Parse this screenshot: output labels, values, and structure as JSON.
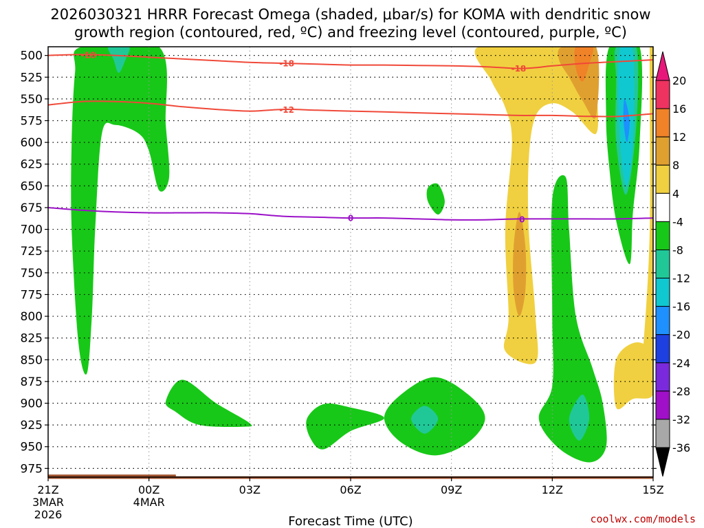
{
  "chart_data": {
    "type": "time-height contour",
    "title_line1": "2026030321 HRRR Forecast Omega (shaded, μbar/s) for KOMA with dendritic snow",
    "title_line2": "growth region (contoured, red, ºC) and freezing level (contoured, purple, ºC)",
    "xlabel": "Forecast Time (UTC)",
    "ylabel": "",
    "credit": "coolwx.com/models",
    "xlim": [
      0,
      18
    ],
    "ylim": [
      985,
      490
    ],
    "y_ticks": [
      500,
      525,
      550,
      575,
      600,
      625,
      650,
      675,
      700,
      725,
      750,
      775,
      800,
      825,
      850,
      875,
      900,
      925,
      950,
      975
    ],
    "x_ticks": [
      {
        "hour": 0,
        "label": "21Z",
        "date1": "3MAR",
        "date2": "2026"
      },
      {
        "hour": 3,
        "label": "00Z",
        "date1": "4MAR",
        "date2": ""
      },
      {
        "hour": 6,
        "label": "03Z",
        "date1": "",
        "date2": ""
      },
      {
        "hour": 9,
        "label": "06Z",
        "date1": "",
        "date2": ""
      },
      {
        "hour": 12,
        "label": "09Z",
        "date1": "",
        "date2": ""
      },
      {
        "hour": 15,
        "label": "12Z",
        "date1": "",
        "date2": ""
      },
      {
        "hour": 18,
        "label": "15Z",
        "date1": "",
        "date2": ""
      }
    ],
    "colorbar": {
      "levels": [
        20,
        16,
        12,
        8,
        4,
        -4,
        -8,
        -12,
        -16,
        -20,
        -24,
        -28,
        -32,
        -36
      ],
      "colors": [
        "#ee3360",
        "#f08228",
        "#e0a030",
        "#f0d040",
        "#ffffff",
        "#18c818",
        "#20c898",
        "#10c8d0",
        "#1e90ff",
        "#1e40e0",
        "#7a2adc",
        "#a010c8",
        "#a8a8a8"
      ],
      "top_triangle": "#e8187a",
      "bottom_triangle": "#000000"
    },
    "series": [
      {
        "name": "-18C isotherm",
        "color": "#f04838",
        "label": "-18",
        "label_points": [
          [
            1.2,
            499.5
          ],
          [
            7.1,
            509
          ],
          [
            14.0,
            515
          ]
        ],
        "points": [
          [
            0,
            500
          ],
          [
            1,
            499
          ],
          [
            2,
            500
          ],
          [
            3,
            502
          ],
          [
            4,
            504
          ],
          [
            5,
            506
          ],
          [
            6,
            508
          ],
          [
            7,
            509
          ],
          [
            8,
            510
          ],
          [
            9,
            511
          ],
          [
            10,
            511
          ],
          [
            11,
            511.5
          ],
          [
            12,
            512
          ],
          [
            13,
            513
          ],
          [
            14,
            515
          ],
          [
            14.5,
            514
          ],
          [
            15,
            512
          ],
          [
            16,
            509
          ],
          [
            17,
            507
          ],
          [
            18,
            505
          ]
        ]
      },
      {
        "name": "-12C isotherm",
        "color": "#f04838",
        "label": "-12",
        "label_points": [
          [
            7.1,
            562.5
          ]
        ],
        "points": [
          [
            0,
            557
          ],
          [
            1,
            553
          ],
          [
            2,
            553
          ],
          [
            3,
            555
          ],
          [
            4,
            559
          ],
          [
            5,
            562
          ],
          [
            6,
            564
          ],
          [
            7,
            562
          ],
          [
            8,
            563
          ],
          [
            9,
            564
          ],
          [
            10,
            565
          ],
          [
            11,
            566
          ],
          [
            12,
            567
          ],
          [
            13,
            568
          ],
          [
            14,
            569
          ],
          [
            15,
            569
          ],
          [
            16,
            570
          ],
          [
            17,
            570
          ],
          [
            18,
            567
          ]
        ]
      },
      {
        "name": "0C freezing level",
        "color": "#9b10c8",
        "label": "0",
        "label_points": [
          [
            9.0,
            687
          ],
          [
            14.1,
            688.5
          ]
        ],
        "points": [
          [
            0,
            675
          ],
          [
            1,
            678
          ],
          [
            2,
            680
          ],
          [
            3,
            681
          ],
          [
            4,
            681
          ],
          [
            5,
            681
          ],
          [
            6,
            682
          ],
          [
            7,
            685
          ],
          [
            8,
            686
          ],
          [
            9,
            687
          ],
          [
            10,
            687
          ],
          [
            11,
            688
          ],
          [
            12,
            689
          ],
          [
            13,
            689
          ],
          [
            14,
            688
          ],
          [
            15,
            688
          ],
          [
            16,
            688
          ],
          [
            17,
            688
          ],
          [
            18,
            687
          ]
        ]
      }
    ],
    "shaded_regions": [
      {
        "level": -4,
        "color": "#18c818",
        "points": [
          [
            1.0,
            490
          ],
          [
            3.3,
            490
          ],
          [
            3.5,
            580
          ],
          [
            3.6,
            640
          ],
          [
            3.3,
            655
          ],
          [
            3.0,
            610
          ],
          [
            2.7,
            590
          ],
          [
            2.0,
            580
          ],
          [
            1.6,
            590
          ],
          [
            1.4,
            700
          ],
          [
            1.3,
            800
          ],
          [
            1.15,
            866
          ],
          [
            0.9,
            830
          ],
          [
            0.7,
            700
          ],
          [
            0.7,
            600
          ],
          [
            0.8,
            520
          ]
        ]
      },
      {
        "level": -8,
        "color": "#20c898",
        "points": [
          [
            1.8,
            490
          ],
          [
            2.4,
            490
          ],
          [
            2.3,
            505
          ],
          [
            2.1,
            520
          ],
          [
            1.95,
            505
          ]
        ]
      },
      {
        "level": -4,
        "color": "#18c818",
        "points": [
          [
            3.5,
            898
          ],
          [
            4.0,
            873
          ],
          [
            5.0,
            900
          ],
          [
            6.0,
            923
          ],
          [
            5.8,
            927
          ],
          [
            4.5,
            925
          ],
          [
            3.8,
            910
          ]
        ]
      },
      {
        "level": -4,
        "color": "#18c818",
        "points": [
          [
            7.7,
            918
          ],
          [
            8.2,
            901
          ],
          [
            9.0,
            905
          ],
          [
            10.0,
            917
          ],
          [
            9.0,
            932
          ],
          [
            8.2,
            953
          ],
          [
            7.8,
            940
          ]
        ]
      },
      {
        "level": -4,
        "color": "#18c818",
        "points": [
          [
            10.0,
            917
          ],
          [
            10.5,
            890
          ],
          [
            11.5,
            870
          ],
          [
            12.5,
            890
          ],
          [
            13.0,
            917
          ],
          [
            12.5,
            945
          ],
          [
            11.5,
            960
          ],
          [
            10.5,
            945
          ]
        ]
      },
      {
        "level": -8,
        "color": "#20c898",
        "points": [
          [
            10.8,
            918
          ],
          [
            11.2,
            903
          ],
          [
            11.6,
            918
          ],
          [
            11.2,
            935
          ]
        ]
      },
      {
        "level": -4,
        "color": "#18c818",
        "points": [
          [
            11.3,
            652
          ],
          [
            11.6,
            648
          ],
          [
            11.8,
            668
          ],
          [
            11.6,
            683
          ],
          [
            11.3,
            668
          ]
        ]
      },
      {
        "level": 4,
        "color": "#f0d040",
        "points": [
          [
            12.8,
            490
          ],
          [
            15.3,
            490
          ],
          [
            16.0,
            500
          ],
          [
            16.3,
            540
          ],
          [
            16.3,
            590
          ],
          [
            15.6,
            565
          ],
          [
            15.0,
            555
          ],
          [
            14.5,
            570
          ],
          [
            14.3,
            620
          ],
          [
            14.3,
            700
          ],
          [
            14.5,
            800
          ],
          [
            14.5,
            853
          ],
          [
            13.6,
            840
          ],
          [
            13.7,
            800
          ],
          [
            13.6,
            700
          ],
          [
            13.8,
            600
          ],
          [
            13.6,
            560
          ],
          [
            13.2,
            530
          ]
        ]
      },
      {
        "level": 8,
        "color": "#e0a030",
        "points": [
          [
            15.3,
            490
          ],
          [
            16.3,
            490
          ],
          [
            16.3,
            570
          ],
          [
            15.9,
            552
          ],
          [
            15.5,
            525
          ],
          [
            15.2,
            505
          ]
        ]
      },
      {
        "level": 12,
        "color": "#f08228",
        "points": [
          [
            15.7,
            490
          ],
          [
            16.2,
            490
          ],
          [
            16.1,
            510
          ],
          [
            15.9,
            530
          ],
          [
            15.7,
            515
          ]
        ]
      },
      {
        "level": 8,
        "color": "#e0a030",
        "points": [
          [
            14.02,
            680
          ],
          [
            14.2,
            720
          ],
          [
            14.2,
            770
          ],
          [
            14.02,
            800
          ],
          [
            13.85,
            770
          ],
          [
            13.85,
            720
          ]
        ]
      },
      {
        "level": 4,
        "color": "#f0d040",
        "points": [
          [
            17.9,
            490
          ],
          [
            18.0,
            490
          ],
          [
            18.0,
            850
          ],
          [
            17.6,
            875
          ],
          [
            17.7,
            840
          ],
          [
            17.9,
            700
          ]
        ]
      },
      {
        "level": 4,
        "color": "#f0d040",
        "points": [
          [
            16.9,
            850
          ],
          [
            17.5,
            830
          ],
          [
            18.0,
            845
          ],
          [
            18.0,
            890
          ],
          [
            17.4,
            895
          ],
          [
            16.9,
            905
          ]
        ]
      },
      {
        "level": -4,
        "color": "#18c818",
        "points": [
          [
            15.0,
            665
          ],
          [
            15.4,
            640
          ],
          [
            15.5,
            700
          ],
          [
            15.7,
            800
          ],
          [
            16.2,
            860
          ],
          [
            16.5,
            900
          ],
          [
            16.6,
            950
          ],
          [
            16.1,
            968
          ],
          [
            15.2,
            952
          ],
          [
            14.6,
            918
          ],
          [
            15.0,
            880
          ],
          [
            15.0,
            800
          ]
        ]
      },
      {
        "level": -8,
        "color": "#20c898",
        "points": [
          [
            15.5,
            918
          ],
          [
            15.9,
            890
          ],
          [
            16.1,
            918
          ],
          [
            15.8,
            943
          ]
        ]
      },
      {
        "level": -4,
        "color": "#18c818",
        "points": [
          [
            16.7,
            490
          ],
          [
            17.6,
            490
          ],
          [
            17.6,
            600
          ],
          [
            17.4,
            680
          ],
          [
            17.3,
            740
          ],
          [
            16.9,
            690
          ],
          [
            16.7,
            630
          ],
          [
            16.6,
            570
          ]
        ]
      },
      {
        "level": -8,
        "color": "#20c898",
        "points": [
          [
            16.9,
            490
          ],
          [
            17.5,
            490
          ],
          [
            17.5,
            580
          ],
          [
            17.2,
            660
          ],
          [
            16.9,
            600
          ],
          [
            16.9,
            530
          ]
        ]
      },
      {
        "level": -12,
        "color": "#10c8d0",
        "points": [
          [
            17.0,
            495
          ],
          [
            17.4,
            495
          ],
          [
            17.4,
            600
          ],
          [
            17.2,
            650
          ],
          [
            17.0,
            590
          ]
        ]
      },
      {
        "level": -16,
        "color": "#1e90ff",
        "points": [
          [
            17.15,
            550
          ],
          [
            17.3,
            575
          ],
          [
            17.22,
            600
          ],
          [
            17.12,
            575
          ]
        ]
      }
    ],
    "terrain": {
      "color": "#a0522d",
      "points": [
        [
          0,
          982
        ],
        [
          3.8,
          982
        ],
        [
          3.8,
          984
        ],
        [
          18,
          984
        ],
        [
          18,
          987
        ],
        [
          0,
          987
        ]
      ]
    }
  }
}
